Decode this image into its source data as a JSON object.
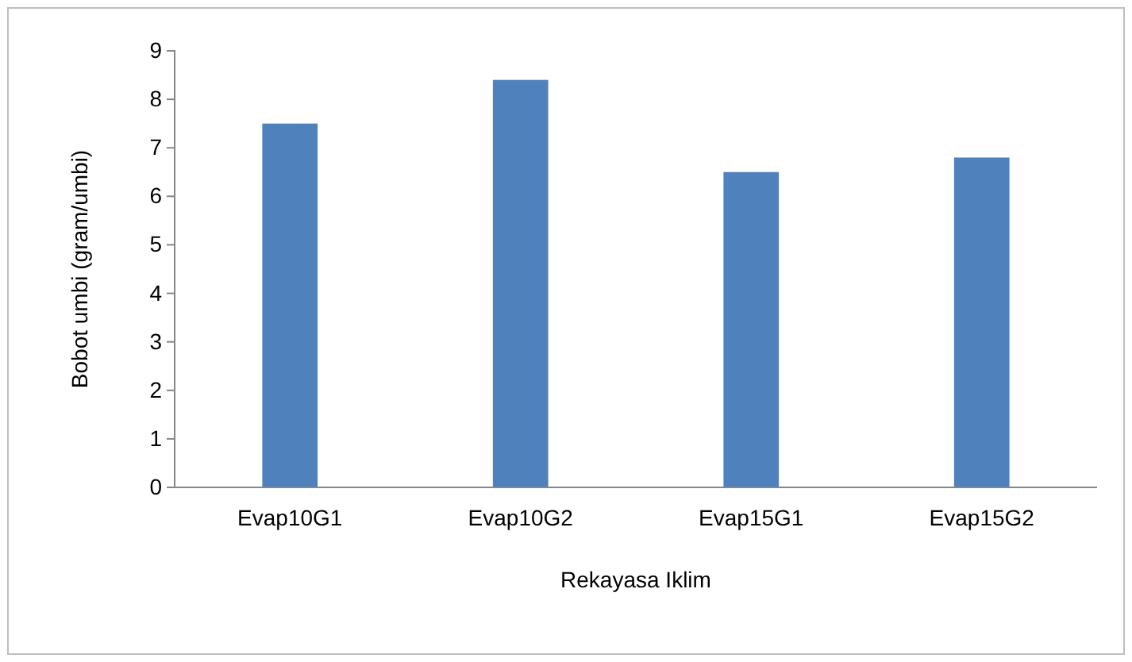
{
  "chart_data": {
    "type": "bar",
    "xlabel": "Rekayasa Iklim",
    "ylabel": "Bobot umbi (gram/umbi)",
    "categories": [
      "Evap10G1",
      "Evap10G2",
      "Evap15G1",
      "Evap15G2"
    ],
    "values": [
      7.5,
      8.4,
      6.5,
      6.8
    ],
    "color": "#4f81bd",
    "ylim": [
      0,
      9
    ],
    "yticks": [
      0,
      1,
      2,
      3,
      4,
      5,
      6,
      7,
      8,
      9
    ],
    "grid": false
  }
}
